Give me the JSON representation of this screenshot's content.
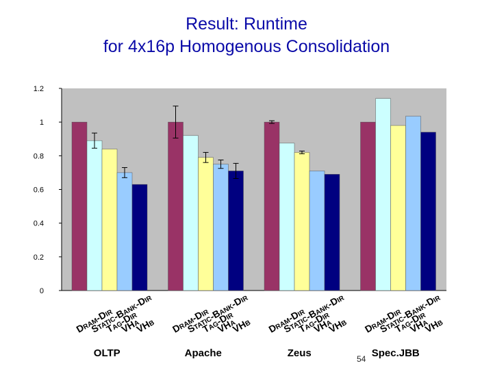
{
  "slide": {
    "title_line1": "Result:  Runtime",
    "title_line2": "for 4x16p Homogenous Consolidation",
    "page_number": "54"
  },
  "colors": {
    "title": "#0a0aa8",
    "plot_bg": "#c0c0c0",
    "series": [
      "#993366",
      "#ccffff",
      "#ffff99",
      "#99ccff",
      "#000080"
    ]
  },
  "chart_data": {
    "type": "bar",
    "title": "",
    "xlabel": "",
    "ylabel": "",
    "ylim": [
      0,
      1.2
    ],
    "yticks": [
      0,
      0.2,
      0.4,
      0.6,
      0.8,
      1,
      1.2
    ],
    "ytick_labels": [
      "0",
      "0.2",
      "0.4",
      "0.6",
      "0.8",
      "1",
      "1.2"
    ],
    "grid": false,
    "categories": [
      "OLTP",
      "Apache",
      "Zeus",
      "Spec.JBB"
    ],
    "series": [
      {
        "label": [
          {
            "t": "D",
            "big": true
          },
          {
            "t": "RAM",
            "big": false
          },
          {
            "t": "-D",
            "big": true
          },
          {
            "t": "IR",
            "big": false
          }
        ],
        "values": [
          1.0,
          1.0,
          1.0,
          1.0
        ],
        "errors": [
          null,
          0.095,
          0.008,
          null
        ]
      },
      {
        "label": [
          {
            "t": "S",
            "big": true
          },
          {
            "t": "TATIC",
            "big": false
          },
          {
            "t": "-B",
            "big": true
          },
          {
            "t": "ANK",
            "big": false
          },
          {
            "t": "-D",
            "big": true
          },
          {
            "t": "IR",
            "big": false
          }
        ],
        "values": [
          0.89,
          0.92,
          0.875,
          1.14
        ],
        "errors": [
          0.045,
          null,
          null,
          null
        ]
      },
      {
        "label": [
          {
            "t": "T",
            "big": true
          },
          {
            "t": "AG",
            "big": false
          },
          {
            "t": "-D",
            "big": true
          },
          {
            "t": "IR",
            "big": false
          }
        ],
        "values": [
          0.84,
          0.79,
          0.82,
          0.98
        ],
        "errors": [
          null,
          0.03,
          0.008,
          null
        ]
      },
      {
        "label": [
          {
            "t": "VH",
            "big": true
          },
          {
            "t": "A",
            "big": false
          }
        ],
        "values": [
          0.7,
          0.75,
          0.71,
          1.035
        ],
        "errors": [
          0.03,
          0.025,
          null,
          null
        ]
      },
      {
        "label": [
          {
            "t": "VH",
            "big": true
          },
          {
            "t": "B",
            "big": false
          }
        ],
        "values": [
          0.63,
          0.71,
          0.69,
          0.94
        ],
        "errors": [
          null,
          0.045,
          null,
          null
        ]
      }
    ]
  }
}
